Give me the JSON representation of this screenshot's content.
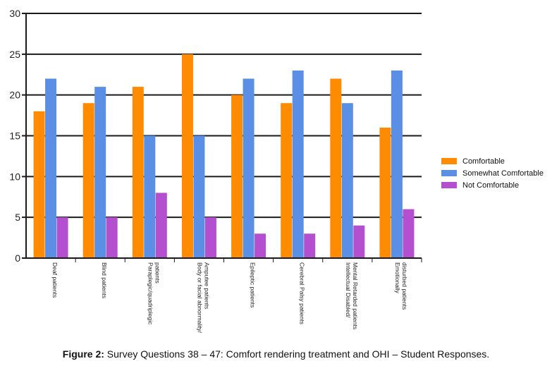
{
  "chart_data": {
    "type": "bar",
    "categories": [
      "Deaf patients",
      "Blind patients",
      "Paraplegic/quadriplegic patients",
      "Body or facial abnormality/ Amputee patients",
      "Epileptic patients",
      "Cerebral Palsy patients",
      "Intellectual Disabled/ Mental Retarded patients",
      "Emotionally disturbed patients"
    ],
    "category_lines": [
      [
        "Deaf patients"
      ],
      [
        "Blind patients"
      ],
      [
        "Paraplegic/quadriplegic",
        "patients"
      ],
      [
        "Body or facial abnormality/",
        "Amputee patients"
      ],
      [
        "Epileptic patients"
      ],
      [
        "Cerebral Palsy patients"
      ],
      [
        "Intellectual Disabled/",
        "Mental Retarded patients"
      ],
      [
        "Emotionally",
        "disturbed patients"
      ]
    ],
    "series": [
      {
        "name": "Comfortable",
        "color": "#FF8C00",
        "values": [
          18,
          19,
          21,
          25,
          20,
          19,
          22,
          16
        ]
      },
      {
        "name": "Somewhat Comfortable",
        "color": "#5B8FE6",
        "values": [
          22,
          21,
          15,
          15,
          22,
          23,
          19,
          23
        ]
      },
      {
        "name": "Not Comfortable",
        "color": "#B44FD0",
        "values": [
          5,
          5,
          8,
          5,
          3,
          3,
          4,
          6
        ]
      }
    ],
    "ylim": [
      0,
      30
    ],
    "yticks": [
      0,
      5,
      10,
      15,
      20,
      25,
      30
    ],
    "grid": true,
    "legend_position": "right"
  },
  "caption": {
    "label": "Figure 2:",
    "text": " Survey Questions 38 – 47: Comfort rendering treatment and OHI – Student Responses."
  }
}
